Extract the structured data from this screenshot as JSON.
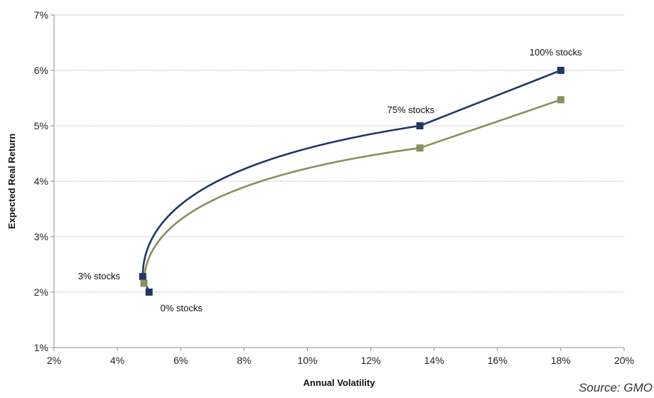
{
  "chart_data": {
    "type": "line",
    "title": "",
    "xlabel": "Annual Volatility",
    "ylabel": "Expected Real Return",
    "xlim": [
      0.02,
      0.2
    ],
    "ylim": [
      0.01,
      0.07
    ],
    "x_ticks": [
      0.02,
      0.04,
      0.06,
      0.08,
      0.1,
      0.12,
      0.14,
      0.16,
      0.18,
      0.2
    ],
    "x_tick_labels": [
      "2%",
      "4%",
      "6%",
      "8%",
      "10%",
      "12%",
      "14%",
      "16%",
      "18%",
      "20%"
    ],
    "y_ticks": [
      0.01,
      0.02,
      0.03,
      0.04,
      0.05,
      0.06,
      0.07
    ],
    "y_tick_labels": [
      "1%",
      "2%",
      "3%",
      "4%",
      "5%",
      "6%",
      "7%"
    ],
    "grid": "horizontal",
    "legend": "none",
    "series": [
      {
        "color": "#1f3864",
        "markers": [
          {
            "x": 0.05,
            "y": 0.02
          },
          {
            "x": 0.048,
            "y": 0.0228
          },
          {
            "x": 0.1355,
            "y": 0.05
          },
          {
            "x": 0.18,
            "y": 0.06
          }
        ]
      },
      {
        "color": "#8a8f5c",
        "markers": [
          {
            "x": 0.0484,
            "y": 0.0216
          },
          {
            "x": 0.1355,
            "y": 0.046
          },
          {
            "x": 0.18,
            "y": 0.0547
          }
        ]
      }
    ],
    "annotations": [
      {
        "text": "100% stocks",
        "x": 0.18,
        "y": 0.06
      },
      {
        "text": "75% stocks",
        "x": 0.1355,
        "y": 0.05
      },
      {
        "text": "3% stocks",
        "x": 0.048,
        "y": 0.0228
      },
      {
        "text": "0% stocks",
        "x": 0.05,
        "y": 0.02
      }
    ],
    "source": "Source: GMO"
  }
}
